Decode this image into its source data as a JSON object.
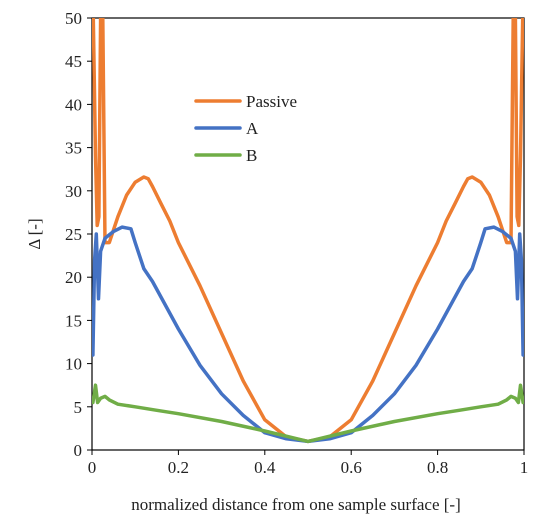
{
  "chart_data": {
    "type": "line",
    "title": "",
    "xlabel": "normalized distance from one sample surface [-]",
    "ylabel": "Δ [-]",
    "xlim": [
      0,
      1
    ],
    "ylim": [
      0,
      50
    ],
    "x_ticks": [
      "0",
      "0.2",
      "0.4",
      "0.6",
      "0.8",
      "1"
    ],
    "y_ticks": [
      "0",
      "5",
      "10",
      "15",
      "20",
      "25",
      "30",
      "35",
      "40",
      "45",
      "50"
    ],
    "grid": false,
    "legend_position": "upper-left",
    "series": [
      {
        "name": "Passive",
        "color": "#ED7D31",
        "x": [
          0.003,
          0.008,
          0.012,
          0.016,
          0.02,
          0.025,
          0.03,
          0.04,
          0.06,
          0.08,
          0.1,
          0.12,
          0.13,
          0.14,
          0.16,
          0.18,
          0.2,
          0.25,
          0.3,
          0.35,
          0.4,
          0.45,
          0.5,
          0.55,
          0.6,
          0.65,
          0.7,
          0.75,
          0.8,
          0.82,
          0.84,
          0.86,
          0.87,
          0.88,
          0.9,
          0.92,
          0.94,
          0.96,
          0.97,
          0.975,
          0.98,
          0.984,
          0.988,
          0.992,
          0.997
        ],
        "y": [
          50,
          34,
          26,
          27,
          50,
          50,
          24,
          24,
          27,
          29.5,
          31,
          31.6,
          31.4,
          30.5,
          28.5,
          26.5,
          24,
          19,
          13.5,
          8,
          3.5,
          1.5,
          1,
          1.5,
          3.5,
          8,
          13.5,
          19,
          24,
          26.5,
          28.5,
          30.5,
          31.4,
          31.6,
          31,
          29.5,
          27,
          24,
          24,
          50,
          50,
          27,
          26,
          34,
          50
        ]
      },
      {
        "name": "A",
        "color": "#4472C4",
        "x": [
          0.002,
          0.006,
          0.01,
          0.015,
          0.02,
          0.03,
          0.05,
          0.07,
          0.09,
          0.1,
          0.12,
          0.14,
          0.2,
          0.25,
          0.3,
          0.35,
          0.4,
          0.45,
          0.5,
          0.55,
          0.6,
          0.65,
          0.7,
          0.75,
          0.8,
          0.86,
          0.88,
          0.9,
          0.91,
          0.93,
          0.95,
          0.97,
          0.98,
          0.985,
          0.99,
          0.994,
          0.998
        ],
        "y": [
          11,
          22,
          25,
          17.5,
          23,
          24.5,
          25.3,
          25.8,
          25.6,
          24,
          21,
          19.5,
          14,
          9.8,
          6.5,
          4,
          2,
          1.3,
          1,
          1.3,
          2,
          4,
          6.5,
          9.8,
          14,
          19.5,
          21,
          24,
          25.6,
          25.8,
          25.3,
          24.5,
          23,
          17.5,
          25,
          22,
          11
        ]
      },
      {
        "name": "B",
        "color": "#70AD47",
        "x": [
          0.002,
          0.008,
          0.013,
          0.02,
          0.03,
          0.04,
          0.06,
          0.1,
          0.15,
          0.2,
          0.3,
          0.4,
          0.5,
          0.6,
          0.7,
          0.8,
          0.85,
          0.9,
          0.94,
          0.96,
          0.97,
          0.98,
          0.987,
          0.992,
          0.998
        ],
        "y": [
          5.5,
          7.5,
          5.5,
          6,
          6.2,
          5.8,
          5.3,
          5,
          4.6,
          4.2,
          3.3,
          2.2,
          1,
          2.2,
          3.3,
          4.2,
          4.6,
          5,
          5.3,
          5.8,
          6.2,
          6,
          5.5,
          7.5,
          5.5
        ]
      }
    ]
  }
}
